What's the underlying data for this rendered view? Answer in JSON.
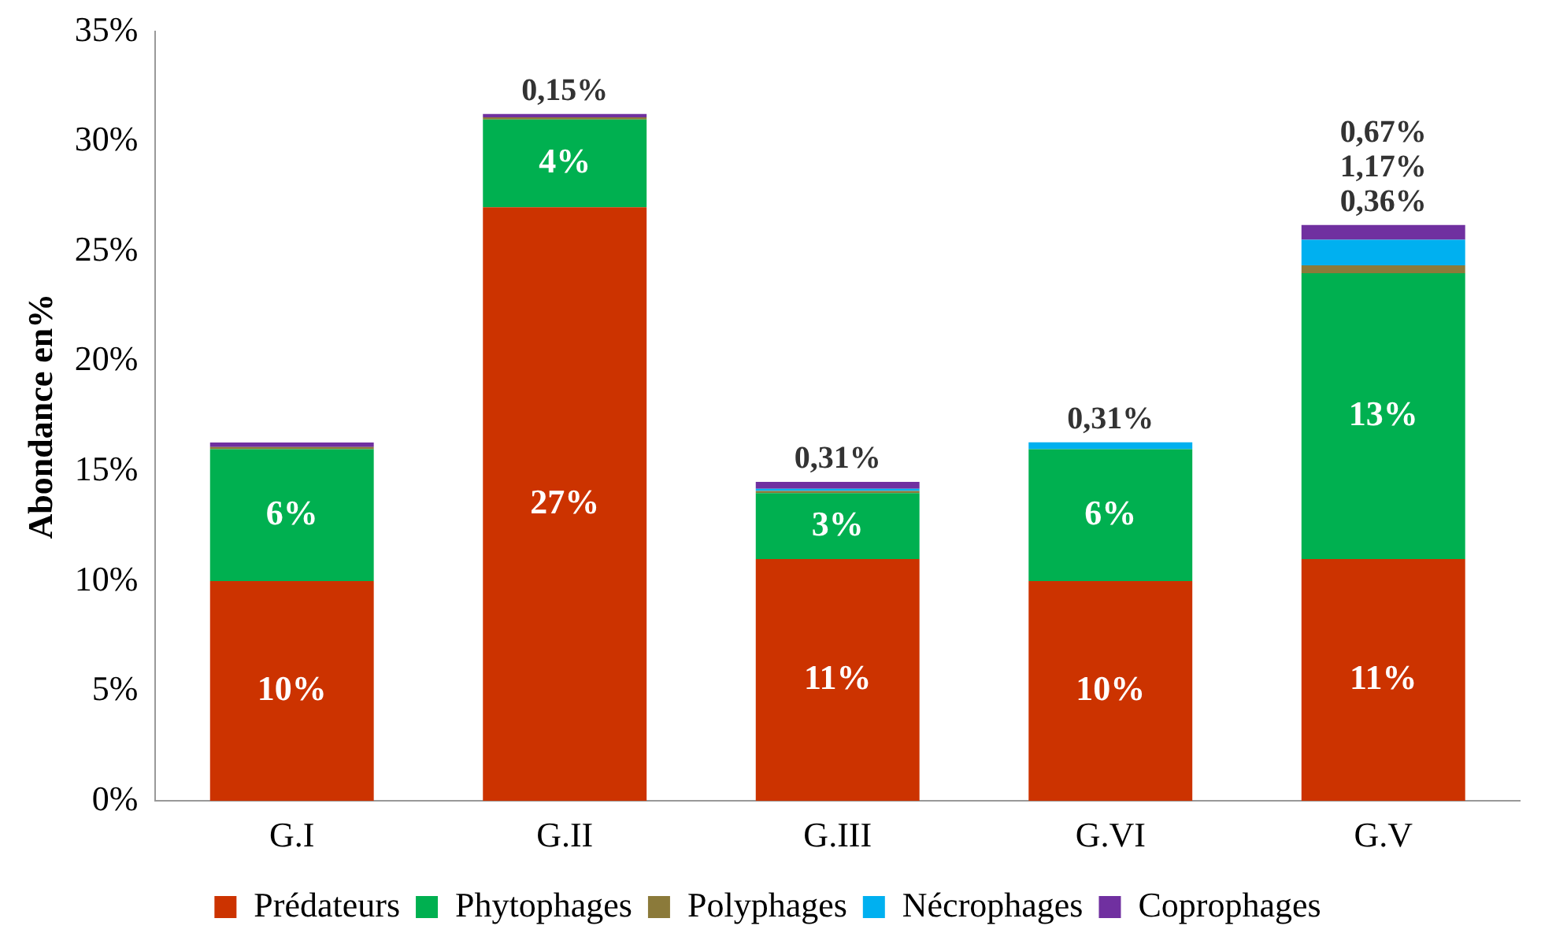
{
  "chart_data": {
    "type": "bar",
    "stacked": true,
    "ylabel": "Abondance en%",
    "categories": [
      "G.I",
      "G.II",
      "G.III",
      "G.VI",
      "G.V"
    ],
    "ylim": [
      0,
      35
    ],
    "yticks": [
      {
        "value": 0,
        "label": "0%"
      },
      {
        "value": 5,
        "label": "5%"
      },
      {
        "value": 10,
        "label": "10%"
      },
      {
        "value": 15,
        "label": "15%"
      },
      {
        "value": 20,
        "label": "20%"
      },
      {
        "value": 25,
        "label": "25%"
      },
      {
        "value": 30,
        "label": "30%"
      },
      {
        "value": 35,
        "label": "35%"
      }
    ],
    "grid": false,
    "legend": "bottom",
    "series": [
      {
        "name": "Prédateurs",
        "color": "#cc3300",
        "values": [
          10,
          27,
          11,
          10,
          11
        ],
        "value_labels": [
          "10%",
          "27%",
          "11%",
          "10%",
          "11%"
        ]
      },
      {
        "name": "Phytophages",
        "color": "#00b050",
        "values": [
          6,
          4,
          3,
          6,
          13
        ],
        "value_labels": [
          "6%",
          "4%",
          "3%",
          "6%",
          "13%"
        ]
      },
      {
        "name": "Polyphages",
        "color": "#8b7a3a",
        "values": [
          0.1,
          0.1,
          0.1,
          null,
          0.36
        ],
        "value_labels": [
          null,
          null,
          null,
          null,
          "0,36%"
        ]
      },
      {
        "name": "Nécrophages",
        "color": "#00b0f0",
        "values": [
          null,
          null,
          0.1,
          0.31,
          1.17
        ],
        "value_labels": [
          null,
          null,
          null,
          "0,31%",
          "1,17%"
        ]
      },
      {
        "name": "Coprophages",
        "color": "#7030a0",
        "values": [
          0.2,
          0.15,
          0.31,
          null,
          0.67
        ],
        "value_labels": [
          null,
          "0,15%",
          "0,31%",
          null,
          "0,67%"
        ]
      }
    ]
  }
}
